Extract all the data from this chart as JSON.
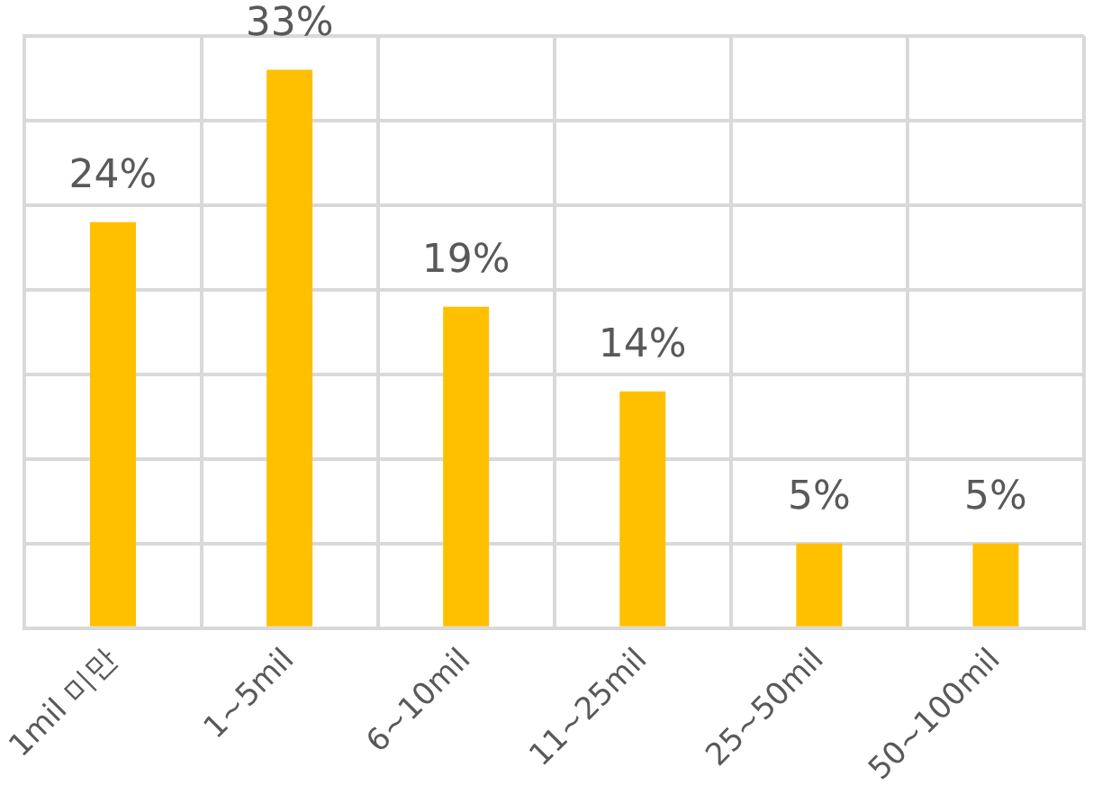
{
  "chart_data": {
    "type": "bar",
    "categories": [
      "1mil 미만",
      "1~5mil",
      "6~10mil",
      "11~25mil",
      "25~50mil",
      "50~100mil"
    ],
    "values": [
      24,
      33,
      19,
      14,
      5,
      5
    ],
    "value_labels": [
      "24%",
      "33%",
      "19%",
      "14%",
      "5%",
      "5%"
    ],
    "color": "#ffc000",
    "ylim": [
      0,
      35
    ],
    "yticks": [
      {
        "value": 0,
        "label": null
      },
      {
        "value": 5,
        "label": null
      },
      {
        "value": 10,
        "label": null
      },
      {
        "value": 15,
        "label": null
      },
      {
        "value": 20,
        "label": null
      },
      {
        "value": 25,
        "label": null
      },
      {
        "value": 30,
        "label": null
      },
      {
        "value": 35,
        "label": null
      }
    ],
    "grid": true,
    "tick_labels": "x",
    "legend": false
  }
}
